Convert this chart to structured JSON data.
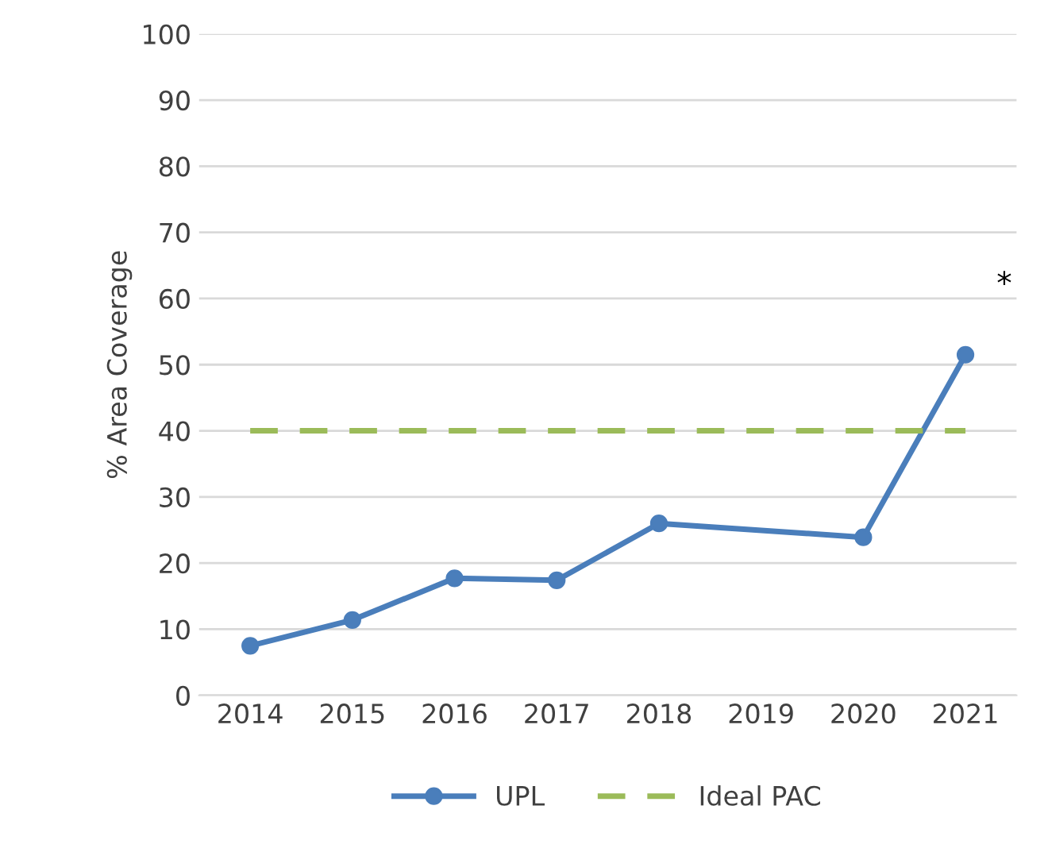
{
  "chart_data": {
    "type": "line",
    "ylabel": "% Area Coverage",
    "categories": [
      "2014",
      "2015",
      "2016",
      "2017",
      "2018",
      "2019",
      "2020",
      "2021"
    ],
    "series": [
      {
        "name": "UPL",
        "color": "#4a7ebb",
        "values": [
          7.5,
          11.4,
          17.7,
          17.4,
          26.0,
          null,
          23.9,
          51.5
        ],
        "marker": "circle",
        "line_style": "solid"
      },
      {
        "name": "Ideal PAC",
        "color": "#9bbb59",
        "values": [
          40,
          40,
          40,
          40,
          40,
          40,
          40,
          40
        ],
        "marker": "none",
        "line_style": "dashed"
      }
    ],
    "ylim": [
      0,
      100
    ],
    "yticks": [
      0,
      10,
      20,
      30,
      40,
      50,
      60,
      70,
      80,
      90,
      100
    ],
    "grid": "y",
    "legend": "bottom",
    "annotations": [
      "*"
    ]
  }
}
